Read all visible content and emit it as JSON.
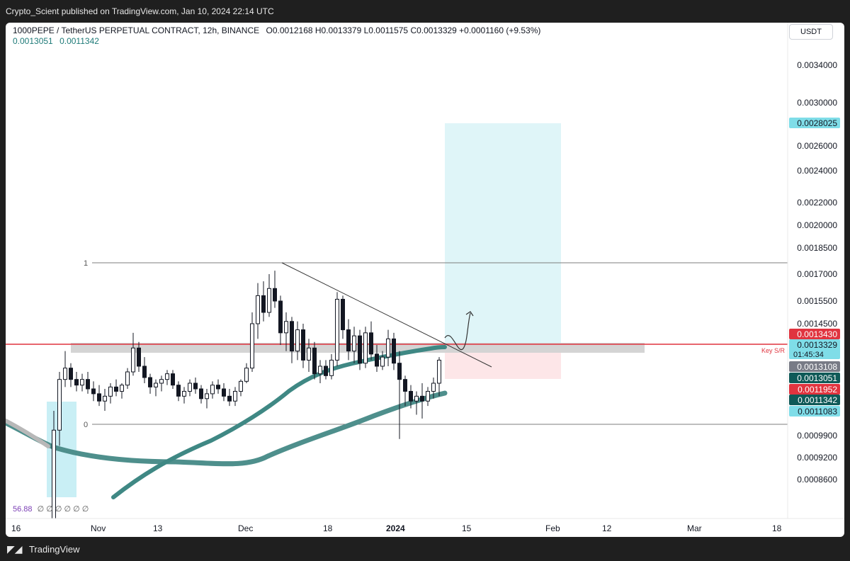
{
  "header": {
    "published": "Crypto_Scient published on TradingView.com, Jan 10, 2024 22:14 UTC"
  },
  "footer": {
    "brand": "TradingView"
  },
  "chart_data": {
    "type": "candlestick",
    "title": "1000PEPE / TetherUS PERPETUAL CONTRACT, 12h, BINANCE",
    "ohlc_text": "O0.0012168 H0.0013379 L0.0011575 C0.0013329 +0.0001160 (+9.53%)",
    "ma_values": [
      "0.0013051",
      "0.0011342"
    ],
    "currency": "USDT",
    "y_ticks": [
      "0.0034000",
      "0.0030000",
      "0.0028025",
      "0.0026000",
      "0.0024000",
      "0.0022000",
      "0.0020000",
      "0.0018500",
      "0.0017000",
      "0.0015500",
      "0.0014500",
      "0.0013430",
      "0.0013329",
      "0.0013108",
      "0.0013051",
      "0.0011952",
      "0.0011342",
      "0.0011083",
      "0.0009900",
      "0.0009200",
      "0.0008600"
    ],
    "x_ticks": [
      "16",
      "Nov",
      "13",
      "Dec",
      "18",
      "2024",
      "15",
      "Feb",
      "12",
      "Mar",
      "18"
    ],
    "price_labels": [
      {
        "value": "0.0028025",
        "color": "#7fdde8",
        "text_color": "#131722"
      },
      {
        "value": "0.0013430",
        "color": "#e0343f",
        "text_color": "#ffffff"
      },
      {
        "value": "0.0013329",
        "countdown": "01:45:34",
        "color": "#7fdde8",
        "text_color": "#131722"
      },
      {
        "value": "0.0013108",
        "color": "#787b86",
        "text_color": "#ffffff"
      },
      {
        "value": "0.0013051",
        "color": "#0f5a58",
        "text_color": "#ffffff"
      },
      {
        "value": "0.0011952",
        "color": "#e0343f",
        "text_color": "#ffffff"
      },
      {
        "value": "0.0011342",
        "color": "#0f5a58",
        "text_color": "#ffffff"
      },
      {
        "value": "0.0011083",
        "color": "#7fdde8",
        "text_color": "#131722"
      }
    ],
    "annotations": {
      "fib_top_label": "1",
      "fib_bottom_label": "0",
      "key_level_label": "Key S/R",
      "rsi_value": "56.88",
      "rsi_symbols": "∅ ∅ ∅ ∅ ∅ ∅"
    },
    "candles": [
      [
        0.0006,
        0.0011,
        0.00058,
        0.001
      ],
      [
        0.001,
        0.00128,
        0.00095,
        0.00124
      ],
      [
        0.00124,
        0.00136,
        0.0012,
        0.0013
      ],
      [
        0.0013,
        0.00132,
        0.0012,
        0.00124
      ],
      [
        0.00124,
        0.00128,
        0.00118,
        0.00121
      ],
      [
        0.00121,
        0.00127,
        0.00118,
        0.00124
      ],
      [
        0.00124,
        0.00128,
        0.00117,
        0.00119
      ],
      [
        0.00119,
        0.00123,
        0.00114,
        0.00117
      ],
      [
        0.00117,
        0.00121,
        0.00112,
        0.00114
      ],
      [
        0.00114,
        0.00119,
        0.0011,
        0.00116
      ],
      [
        0.00116,
        0.00122,
        0.00113,
        0.0012
      ],
      [
        0.0012,
        0.00124,
        0.00116,
        0.00118
      ],
      [
        0.00118,
        0.00122,
        0.00115,
        0.00121
      ],
      [
        0.00121,
        0.0013,
        0.00119,
        0.00128
      ],
      [
        0.00128,
        0.00142,
        0.00126,
        0.00137
      ],
      [
        0.00137,
        0.00139,
        0.00128,
        0.00131
      ],
      [
        0.00131,
        0.00134,
        0.00122,
        0.00125
      ],
      [
        0.00125,
        0.00127,
        0.00117,
        0.0012
      ],
      [
        0.0012,
        0.00124,
        0.00116,
        0.00122
      ],
      [
        0.00122,
        0.00126,
        0.00118,
        0.00124
      ],
      [
        0.00124,
        0.00129,
        0.00121,
        0.00127
      ],
      [
        0.00127,
        0.00129,
        0.00119,
        0.00121
      ],
      [
        0.00121,
        0.00123,
        0.00114,
        0.00116
      ],
      [
        0.00116,
        0.0012,
        0.00113,
        0.00118
      ],
      [
        0.00118,
        0.00124,
        0.00116,
        0.00122
      ],
      [
        0.00122,
        0.00125,
        0.00117,
        0.00119
      ],
      [
        0.00119,
        0.00121,
        0.00113,
        0.00115
      ],
      [
        0.00115,
        0.00119,
        0.00111,
        0.00117
      ],
      [
        0.00117,
        0.00123,
        0.00115,
        0.00121
      ],
      [
        0.00121,
        0.00124,
        0.00117,
        0.00119
      ],
      [
        0.00119,
        0.00122,
        0.00114,
        0.00116
      ],
      [
        0.00116,
        0.00119,
        0.00112,
        0.00114
      ],
      [
        0.00114,
        0.0012,
        0.00112,
        0.00118
      ],
      [
        0.00118,
        0.00124,
        0.00116,
        0.00123
      ],
      [
        0.00123,
        0.00132,
        0.00122,
        0.0013
      ],
      [
        0.0013,
        0.0015,
        0.00128,
        0.00145
      ],
      [
        0.00145,
        0.00165,
        0.0014,
        0.00158
      ],
      [
        0.00158,
        0.00166,
        0.00146,
        0.0015
      ],
      [
        0.0015,
        0.0017,
        0.00148,
        0.00162
      ],
      [
        0.00162,
        0.00172,
        0.00152,
        0.00155
      ],
      [
        0.00155,
        0.00158,
        0.00138,
        0.00142
      ],
      [
        0.00142,
        0.0015,
        0.00136,
        0.00146
      ],
      [
        0.00146,
        0.00148,
        0.00132,
        0.00136
      ],
      [
        0.00136,
        0.00146,
        0.00133,
        0.00143
      ],
      [
        0.00143,
        0.00145,
        0.0013,
        0.00133
      ],
      [
        0.00133,
        0.0014,
        0.00128,
        0.00137
      ],
      [
        0.00137,
        0.00139,
        0.00124,
        0.00127
      ],
      [
        0.00127,
        0.00133,
        0.00122,
        0.00131
      ],
      [
        0.00131,
        0.00133,
        0.00124,
        0.00126
      ],
      [
        0.00126,
        0.00135,
        0.00124,
        0.00133
      ],
      [
        0.00133,
        0.0016,
        0.00131,
        0.00156
      ],
      [
        0.00156,
        0.00158,
        0.0014,
        0.00143
      ],
      [
        0.00143,
        0.00147,
        0.00133,
        0.00136
      ],
      [
        0.00136,
        0.00144,
        0.00132,
        0.00141
      ],
      [
        0.00141,
        0.00143,
        0.00129,
        0.00132
      ],
      [
        0.00132,
        0.00144,
        0.0013,
        0.00142
      ],
      [
        0.00142,
        0.00146,
        0.00133,
        0.00135
      ],
      [
        0.00135,
        0.00138,
        0.00128,
        0.00131
      ],
      [
        0.00131,
        0.00136,
        0.00129,
        0.00134
      ],
      [
        0.00134,
        0.00143,
        0.00131,
        0.0014
      ],
      [
        0.0014,
        0.00142,
        0.00129,
        0.00132
      ],
      [
        0.00132,
        0.00136,
        0.00097,
        0.00124
      ],
      [
        0.00124,
        0.00126,
        0.00112,
        0.00118
      ],
      [
        0.00118,
        0.00121,
        0.00111,
        0.00114
      ],
      [
        0.00114,
        0.00118,
        0.00108,
        0.00116
      ],
      [
        0.00116,
        0.00122,
        0.00106,
        0.00114
      ],
      [
        0.00114,
        0.0012,
        0.00112,
        0.00118
      ],
      [
        0.00118,
        0.00125,
        0.00115,
        0.00122
      ],
      [
        0.00122,
        0.00134,
        0.00116,
        0.00133
      ]
    ]
  }
}
